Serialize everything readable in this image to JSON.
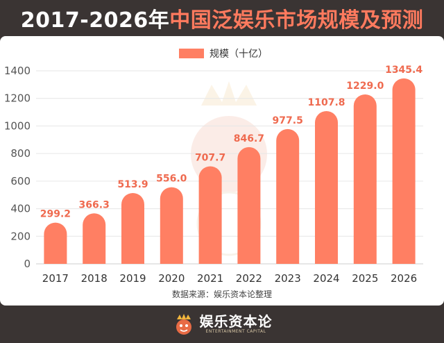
{
  "header": {
    "title_years": "2017-2026年",
    "title_main": "中国泛娱乐市场规模及预测"
  },
  "chart_data": {
    "type": "bar",
    "title": "2017-2026年中国泛娱乐市场规模及预测",
    "categories": [
      "2017",
      "2018",
      "2019",
      "2020",
      "2021",
      "2022",
      "2023",
      "2024",
      "2025",
      "2026"
    ],
    "series": [
      {
        "name": "规模（十亿）",
        "values": [
          299.2,
          366.3,
          513.9,
          556.0,
          707.7,
          846.7,
          977.5,
          1107.8,
          1229.0,
          1345.4
        ]
      }
    ],
    "value_labels": [
      "299.2",
      "366.3",
      "513.9",
      "556.0",
      "707.7",
      "846.7",
      "977.5",
      "1107.8",
      "1229.0",
      "1345.4"
    ],
    "ylim": [
      0,
      1400
    ],
    "yticks": [
      "0",
      "200",
      "400",
      "600",
      "800",
      "1000",
      "1200",
      "1400"
    ],
    "grid": true,
    "legend_position": "top",
    "bar_color": "#ff7f63",
    "label_color": "#ef6a4f",
    "source_note": "数据来源：娱乐资本论整理"
  },
  "footer": {
    "logo_cn": "娱乐资本论",
    "logo_en": "ENTERTAINMENT CAPITAL",
    "logo_icon": "crown-mascot-icon"
  }
}
